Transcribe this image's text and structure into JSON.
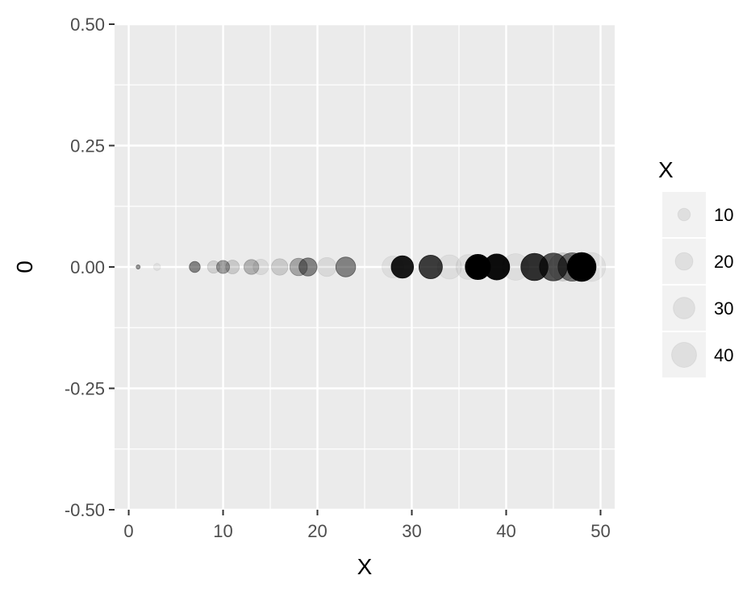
{
  "chart_data": {
    "type": "scatter",
    "xlabel": "X",
    "ylabel": "0",
    "xlim": [
      -1.5,
      51.5
    ],
    "ylim": [
      -0.5,
      0.5
    ],
    "x_ticks": [
      0,
      10,
      20,
      30,
      40,
      50
    ],
    "x_tick_labels": [
      "0",
      "10",
      "20",
      "30",
      "40",
      "50"
    ],
    "y_ticks": [
      0.5,
      0.25,
      0,
      -0.25,
      -0.5
    ],
    "y_tick_labels": [
      "0.50",
      "0.25",
      "0.00",
      "-0.25",
      "-0.50"
    ],
    "grid": true,
    "legend": {
      "title": "X",
      "position": "right",
      "labels": [
        "10",
        "20",
        "30",
        "40"
      ],
      "values": [
        10,
        20,
        30,
        40
      ]
    },
    "point_color": "#000000",
    "panel_background": "#ebebeb",
    "gridline_color": "#ffffff",
    "points": [
      {
        "x": 1,
        "y": 0,
        "size": 1,
        "alpha": 0.4
      },
      {
        "x": 3,
        "y": 0,
        "size": 3,
        "alpha": 0.06
      },
      {
        "x": 7,
        "y": 0,
        "size": 7,
        "alpha": 0.45
      },
      {
        "x": 9,
        "y": 0,
        "size": 9,
        "alpha": 0.12
      },
      {
        "x": 10,
        "y": 0,
        "size": 10,
        "alpha": 0.35
      },
      {
        "x": 11,
        "y": 0,
        "size": 11,
        "alpha": 0.15
      },
      {
        "x": 13,
        "y": 0,
        "size": 13,
        "alpha": 0.25
      },
      {
        "x": 14,
        "y": 0,
        "size": 14,
        "alpha": 0.08
      },
      {
        "x": 16,
        "y": 0,
        "size": 16,
        "alpha": 0.15
      },
      {
        "x": 18,
        "y": 0,
        "size": 18,
        "alpha": 0.3
      },
      {
        "x": 19,
        "y": 0,
        "size": 19,
        "alpha": 0.45
      },
      {
        "x": 21,
        "y": 0,
        "size": 21,
        "alpha": 0.08
      },
      {
        "x": 23,
        "y": 0,
        "size": 23,
        "alpha": 0.45
      },
      {
        "x": 28,
        "y": 0,
        "size": 28,
        "alpha": 0.06
      },
      {
        "x": 29,
        "y": 0,
        "size": 29,
        "alpha": 0.9
      },
      {
        "x": 32,
        "y": 0,
        "size": 32,
        "alpha": 0.75
      },
      {
        "x": 34,
        "y": 0,
        "size": 34,
        "alpha": 0.06
      },
      {
        "x": 36,
        "y": 0,
        "size": 36,
        "alpha": 0.06
      },
      {
        "x": 37,
        "y": 0,
        "size": 37,
        "alpha": 1
      },
      {
        "x": 39,
        "y": 0,
        "size": 39,
        "alpha": 0.95
      },
      {
        "x": 41,
        "y": 0,
        "size": 41,
        "alpha": 0.06
      },
      {
        "x": 43,
        "y": 0,
        "size": 43,
        "alpha": 0.8
      },
      {
        "x": 45,
        "y": 0,
        "size": 45,
        "alpha": 0.65
      },
      {
        "x": 46,
        "y": 0,
        "size": 46,
        "alpha": 0.12
      },
      {
        "x": 47,
        "y": 0,
        "size": 47,
        "alpha": 0.5
      },
      {
        "x": 48,
        "y": 0,
        "size": 48,
        "alpha": 1
      },
      {
        "x": 49,
        "y": 0,
        "size": 49,
        "alpha": 0.06
      }
    ]
  }
}
